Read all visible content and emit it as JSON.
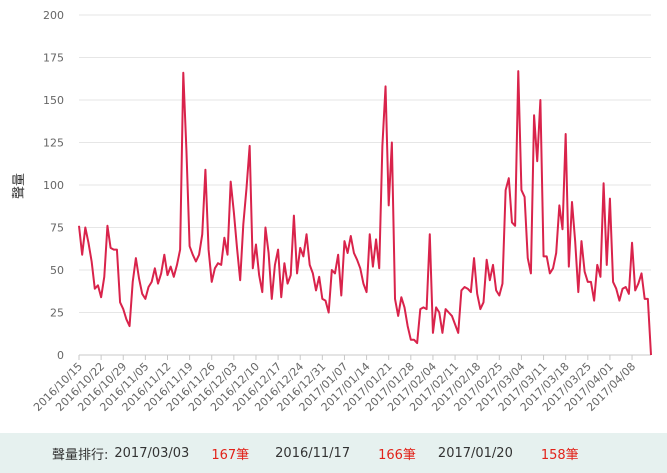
{
  "chart_data": {
    "type": "line",
    "ylabel": "聲量",
    "ylim": [
      0,
      200
    ],
    "yticks": [
      0,
      25,
      50,
      75,
      100,
      125,
      150,
      175,
      200
    ],
    "xtick_labels": [
      "2016/10/15",
      "2016/10/22",
      "2016/10/29",
      "2016/11/05",
      "2016/11/12",
      "2016/11/19",
      "2016/11/26",
      "2016/12/03",
      "2016/12/10",
      "2016/12/17",
      "2016/12/24",
      "2016/12/31",
      "2017/01/07",
      "2017/01/14",
      "2017/01/21",
      "2017/01/28",
      "2017/02/04",
      "2017/02/11",
      "2017/02/18",
      "2017/02/25",
      "2017/03/04",
      "2017/03/11",
      "2017/03/18",
      "2017/03/25",
      "2017/04/01",
      "2017/04/08"
    ],
    "line_color": "#d9234b",
    "grid": "horizontal",
    "series": [
      {
        "values": [
          76,
          59,
          75,
          66,
          55,
          39,
          41,
          34,
          46,
          76,
          63,
          62,
          62,
          31,
          27,
          21,
          17,
          43,
          57,
          45,
          36,
          33,
          40,
          43,
          51,
          42,
          48,
          59,
          47,
          52,
          46,
          53,
          62,
          166,
          120,
          64,
          59,
          55,
          59,
          71,
          109,
          62,
          43,
          51,
          54,
          53,
          69,
          59,
          102,
          84,
          63,
          44,
          77,
          98,
          123,
          51,
          65,
          47,
          37,
          75,
          60,
          33,
          53,
          62,
          34,
          54,
          42,
          47,
          82,
          48,
          63,
          58,
          71,
          53,
          48,
          38,
          46,
          33,
          32,
          25,
          50,
          48,
          59,
          35,
          67,
          60,
          70,
          60,
          56,
          51,
          42,
          37,
          71,
          52,
          68,
          51,
          123,
          158,
          88,
          125,
          33,
          23,
          34,
          28,
          17,
          9,
          9,
          7,
          27,
          28,
          27,
          71,
          13,
          28,
          25,
          13,
          27,
          25,
          23,
          18,
          13,
          38,
          40,
          39,
          37,
          57,
          36,
          27,
          31,
          56,
          44,
          53,
          38,
          35,
          42,
          97,
          104,
          78,
          76,
          167,
          97,
          93,
          57,
          48,
          141,
          114,
          150,
          58,
          58,
          48,
          51,
          60,
          88,
          74,
          130,
          52,
          90,
          67,
          37,
          67,
          49,
          43,
          43,
          32,
          53,
          46,
          101,
          53,
          92,
          43,
          39,
          32,
          39,
          40,
          36,
          66,
          38,
          42,
          48,
          33,
          33,
          0
        ]
      }
    ]
  },
  "footer": {
    "label": "聲量排行:",
    "ranks": [
      {
        "date": "2017/03/03",
        "count": "167筆"
      },
      {
        "date": "2016/11/17",
        "count": "166筆"
      },
      {
        "date": "2017/01/20",
        "count": "158筆"
      }
    ],
    "accent_color": "#e2231a",
    "background_color": "#e6f1ef"
  }
}
